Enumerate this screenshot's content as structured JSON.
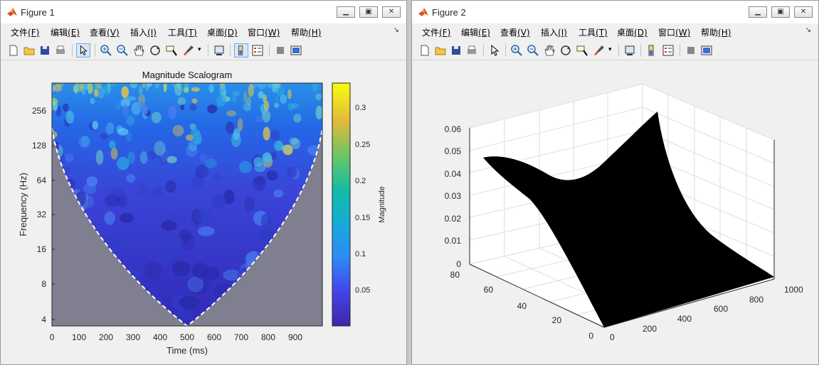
{
  "window1": {
    "title": "Figure 1",
    "menu": [
      {
        "label": "文件",
        "key": "(F)"
      },
      {
        "label": "编辑",
        "key": "(E)"
      },
      {
        "label": "查看",
        "key": "(V)"
      },
      {
        "label": "插入",
        "key": "(I)"
      },
      {
        "label": "工具",
        "key": "(T)"
      },
      {
        "label": "桌面",
        "key": "(D)"
      },
      {
        "label": "窗口",
        "key": "(W)"
      },
      {
        "label": "帮助",
        "key": "(H)"
      }
    ],
    "plot_title": "Magnitude Scalogram",
    "xlabel": "Time (ms)",
    "ylabel": "Frequency (Hz)",
    "colorbar_label": "Magnitude",
    "xticks": [
      "0",
      "100",
      "200",
      "300",
      "400",
      "500",
      "600",
      "700",
      "800",
      "900"
    ],
    "yticks": [
      "256",
      "128",
      "64",
      "32",
      "16",
      "8",
      "4"
    ],
    "cticks": [
      "0.3",
      "0.25",
      "0.2",
      "0.15",
      "0.1",
      "0.05"
    ]
  },
  "window2": {
    "title": "Figure 2",
    "menu": [
      {
        "label": "文件",
        "key": "(F)"
      },
      {
        "label": "编辑",
        "key": "(E)"
      },
      {
        "label": "查看",
        "key": "(V)"
      },
      {
        "label": "插入",
        "key": "(I)"
      },
      {
        "label": "工具",
        "key": "(T)"
      },
      {
        "label": "桌面",
        "key": "(D)"
      },
      {
        "label": "窗口",
        "key": "(W)"
      },
      {
        "label": "帮助",
        "key": "(H)"
      }
    ],
    "zticks": [
      "0.06",
      "0.05",
      "0.04",
      "0.03",
      "0.02",
      "0.01",
      "0"
    ],
    "yticks": [
      "80",
      "60",
      "40",
      "20",
      "0"
    ],
    "xticks": [
      "0",
      "200",
      "400",
      "600",
      "800",
      "1000"
    ]
  },
  "colors": {
    "parula_dark": "#3e26a8",
    "parula_yellow": "#f9fb0e",
    "surface": "#000000",
    "cone_gray": "#7f7f90"
  }
}
